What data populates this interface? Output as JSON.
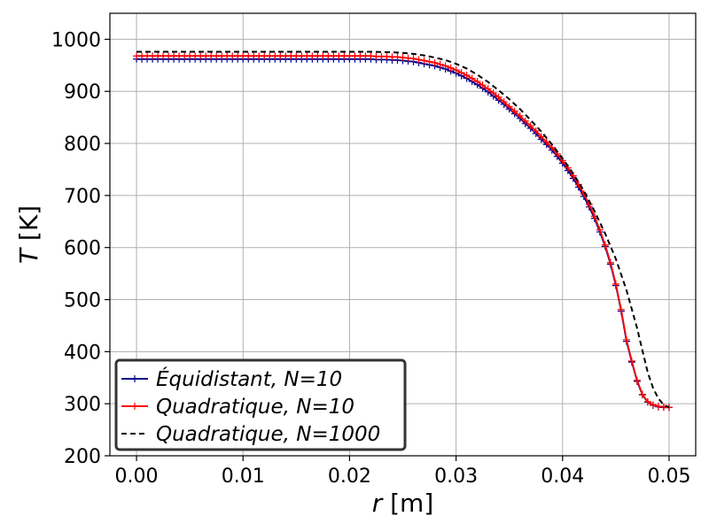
{
  "chart_data": {
    "type": "line",
    "xlabel_var": "r",
    "xlabel_unit": " [m]",
    "ylabel_var": "T",
    "ylabel_unit": " [K]",
    "xlim": [
      -0.0025,
      0.0525
    ],
    "ylim": [
      200,
      1050
    ],
    "xticks": [
      0.0,
      0.01,
      0.02,
      0.03,
      0.04,
      0.05
    ],
    "xtick_labels": [
      "0.00",
      "0.01",
      "0.02",
      "0.03",
      "0.04",
      "0.05"
    ],
    "yticks": [
      200,
      300,
      400,
      500,
      600,
      700,
      800,
      900,
      1000
    ],
    "ytick_labels": [
      "200",
      "300",
      "400",
      "500",
      "600",
      "700",
      "800",
      "900",
      "1000"
    ],
    "grid": true,
    "legend_position": "lower-left",
    "series": [
      {
        "name": "Équidistant, N=10",
        "color": "#00008b",
        "style": "solid",
        "marker": "+",
        "points": [
          [
            0.0,
            962
          ],
          [
            0.0005,
            962
          ],
          [
            0.001,
            962
          ],
          [
            0.0015,
            962
          ],
          [
            0.002,
            962
          ],
          [
            0.0025,
            962
          ],
          [
            0.003,
            962
          ],
          [
            0.0035,
            962
          ],
          [
            0.004,
            962
          ],
          [
            0.0045,
            962
          ],
          [
            0.005,
            962
          ],
          [
            0.0055,
            962
          ],
          [
            0.006,
            962
          ],
          [
            0.0065,
            962
          ],
          [
            0.007,
            962
          ],
          [
            0.0075,
            962
          ],
          [
            0.008,
            962
          ],
          [
            0.0085,
            962
          ],
          [
            0.009,
            962
          ],
          [
            0.0095,
            962
          ],
          [
            0.01,
            962
          ],
          [
            0.0105,
            962
          ],
          [
            0.011,
            962
          ],
          [
            0.0115,
            962
          ],
          [
            0.012,
            962
          ],
          [
            0.0125,
            962
          ],
          [
            0.013,
            962
          ],
          [
            0.0135,
            962
          ],
          [
            0.014,
            962
          ],
          [
            0.0145,
            962
          ],
          [
            0.015,
            962
          ],
          [
            0.0155,
            962
          ],
          [
            0.016,
            962
          ],
          [
            0.0165,
            962
          ],
          [
            0.017,
            962
          ],
          [
            0.0175,
            962
          ],
          [
            0.018,
            962
          ],
          [
            0.0185,
            962
          ],
          [
            0.019,
            962
          ],
          [
            0.0195,
            962
          ],
          [
            0.02,
            962
          ],
          [
            0.0205,
            962
          ],
          [
            0.021,
            962
          ],
          [
            0.0215,
            962
          ],
          [
            0.022,
            962
          ],
          [
            0.0225,
            961
          ],
          [
            0.023,
            961
          ],
          [
            0.0235,
            961
          ],
          [
            0.024,
            960
          ],
          [
            0.0245,
            960
          ],
          [
            0.025,
            959
          ],
          [
            0.0255,
            958
          ],
          [
            0.026,
            957
          ],
          [
            0.0265,
            955
          ],
          [
            0.027,
            953
          ],
          [
            0.0275,
            951
          ],
          [
            0.028,
            949
          ],
          [
            0.0285,
            946
          ],
          [
            0.029,
            943
          ],
          [
            0.0295,
            939
          ],
          [
            0.03,
            935
          ],
          [
            0.0305,
            930
          ],
          [
            0.031,
            925
          ],
          [
            0.0315,
            919
          ],
          [
            0.032,
            913
          ],
          [
            0.0325,
            906
          ],
          [
            0.033,
            899
          ],
          [
            0.0335,
            891
          ],
          [
            0.034,
            883
          ],
          [
            0.0345,
            875
          ],
          [
            0.035,
            866
          ],
          [
            0.0355,
            857
          ],
          [
            0.036,
            848
          ],
          [
            0.0365,
            838
          ],
          [
            0.037,
            829
          ],
          [
            0.0375,
            819
          ],
          [
            0.038,
            808
          ],
          [
            0.0385,
            798
          ],
          [
            0.039,
            787
          ],
          [
            0.0395,
            775
          ],
          [
            0.04,
            762
          ],
          [
            0.0405,
            748
          ],
          [
            0.041,
            733
          ],
          [
            0.0415,
            716
          ],
          [
            0.042,
            698
          ],
          [
            0.0425,
            678
          ],
          [
            0.043,
            656
          ],
          [
            0.0435,
            630
          ],
          [
            0.044,
            602
          ],
          [
            0.0445,
            568
          ],
          [
            0.045,
            527
          ],
          [
            0.0455,
            478
          ],
          [
            0.046,
            420
          ],
          [
            0.0465,
            380
          ],
          [
            0.047,
            343
          ],
          [
            0.0475,
            317
          ],
          [
            0.048,
            303
          ],
          [
            0.0485,
            297
          ],
          [
            0.049,
            294
          ],
          [
            0.0495,
            293
          ],
          [
            0.05,
            293
          ]
        ]
      },
      {
        "name": "Quadratique, N=10",
        "color": "#ff0000",
        "style": "solid",
        "marker": "+",
        "points": [
          [
            0.0,
            968
          ],
          [
            0.0005,
            968
          ],
          [
            0.001,
            968
          ],
          [
            0.0015,
            968
          ],
          [
            0.002,
            968
          ],
          [
            0.0025,
            968
          ],
          [
            0.003,
            968
          ],
          [
            0.0035,
            968
          ],
          [
            0.004,
            968
          ],
          [
            0.0045,
            968
          ],
          [
            0.005,
            968
          ],
          [
            0.0055,
            968
          ],
          [
            0.006,
            968
          ],
          [
            0.0065,
            968
          ],
          [
            0.007,
            968
          ],
          [
            0.0075,
            968
          ],
          [
            0.008,
            968
          ],
          [
            0.0085,
            968
          ],
          [
            0.009,
            968
          ],
          [
            0.0095,
            968
          ],
          [
            0.01,
            968
          ],
          [
            0.0105,
            968
          ],
          [
            0.011,
            968
          ],
          [
            0.0115,
            968
          ],
          [
            0.012,
            968
          ],
          [
            0.0125,
            968
          ],
          [
            0.013,
            968
          ],
          [
            0.0135,
            968
          ],
          [
            0.014,
            968
          ],
          [
            0.0145,
            968
          ],
          [
            0.015,
            968
          ],
          [
            0.0155,
            968
          ],
          [
            0.016,
            968
          ],
          [
            0.0165,
            968
          ],
          [
            0.017,
            968
          ],
          [
            0.0175,
            968
          ],
          [
            0.018,
            968
          ],
          [
            0.0185,
            968
          ],
          [
            0.019,
            968
          ],
          [
            0.0195,
            968
          ],
          [
            0.02,
            968
          ],
          [
            0.0205,
            968
          ],
          [
            0.021,
            968
          ],
          [
            0.0215,
            968
          ],
          [
            0.022,
            968
          ],
          [
            0.0225,
            967
          ],
          [
            0.023,
            967
          ],
          [
            0.0235,
            967
          ],
          [
            0.024,
            966
          ],
          [
            0.0245,
            966
          ],
          [
            0.025,
            965
          ],
          [
            0.0255,
            964
          ],
          [
            0.026,
            963
          ],
          [
            0.0265,
            961
          ],
          [
            0.027,
            959
          ],
          [
            0.0275,
            957
          ],
          [
            0.028,
            955
          ],
          [
            0.0285,
            952
          ],
          [
            0.029,
            949
          ],
          [
            0.0295,
            945
          ],
          [
            0.03,
            941
          ],
          [
            0.0305,
            936
          ],
          [
            0.031,
            931
          ],
          [
            0.0315,
            925
          ],
          [
            0.032,
            919
          ],
          [
            0.0325,
            912
          ],
          [
            0.033,
            905
          ],
          [
            0.0335,
            897
          ],
          [
            0.034,
            889
          ],
          [
            0.0345,
            880
          ],
          [
            0.035,
            871
          ],
          [
            0.0355,
            862
          ],
          [
            0.036,
            853
          ],
          [
            0.0365,
            843
          ],
          [
            0.037,
            834
          ],
          [
            0.0375,
            824
          ],
          [
            0.038,
            813
          ],
          [
            0.0385,
            803
          ],
          [
            0.039,
            792
          ],
          [
            0.0395,
            780
          ],
          [
            0.04,
            767
          ],
          [
            0.0405,
            753
          ],
          [
            0.041,
            738
          ],
          [
            0.0415,
            721
          ],
          [
            0.042,
            703
          ],
          [
            0.0425,
            683
          ],
          [
            0.043,
            660
          ],
          [
            0.0435,
            634
          ],
          [
            0.044,
            605
          ],
          [
            0.0445,
            571
          ],
          [
            0.045,
            530
          ],
          [
            0.0455,
            481
          ],
          [
            0.046,
            423
          ],
          [
            0.0465,
            382
          ],
          [
            0.047,
            345
          ],
          [
            0.0475,
            318
          ],
          [
            0.048,
            304
          ],
          [
            0.0485,
            298
          ],
          [
            0.049,
            295
          ],
          [
            0.0495,
            294
          ],
          [
            0.05,
            293
          ]
        ]
      },
      {
        "name": "Quadratique, N=1000",
        "color": "#000000",
        "style": "dashed",
        "marker": "none",
        "points": [
          [
            0.0,
            976
          ],
          [
            0.005,
            976
          ],
          [
            0.01,
            976
          ],
          [
            0.015,
            976
          ],
          [
            0.02,
            976
          ],
          [
            0.022,
            976
          ],
          [
            0.024,
            975
          ],
          [
            0.025,
            974
          ],
          [
            0.026,
            972
          ],
          [
            0.027,
            969
          ],
          [
            0.028,
            965
          ],
          [
            0.029,
            960
          ],
          [
            0.03,
            953
          ],
          [
            0.031,
            944
          ],
          [
            0.032,
            932
          ],
          [
            0.033,
            918
          ],
          [
            0.034,
            902
          ],
          [
            0.035,
            885
          ],
          [
            0.036,
            866
          ],
          [
            0.037,
            845
          ],
          [
            0.038,
            823
          ],
          [
            0.039,
            798
          ],
          [
            0.04,
            771
          ],
          [
            0.041,
            742
          ],
          [
            0.042,
            709
          ],
          [
            0.043,
            670
          ],
          [
            0.044,
            627
          ],
          [
            0.045,
            578
          ],
          [
            0.046,
            518
          ],
          [
            0.047,
            445
          ],
          [
            0.0475,
            402
          ],
          [
            0.048,
            360
          ],
          [
            0.0485,
            330
          ],
          [
            0.049,
            310
          ],
          [
            0.0495,
            298
          ],
          [
            0.05,
            293
          ]
        ]
      }
    ]
  }
}
